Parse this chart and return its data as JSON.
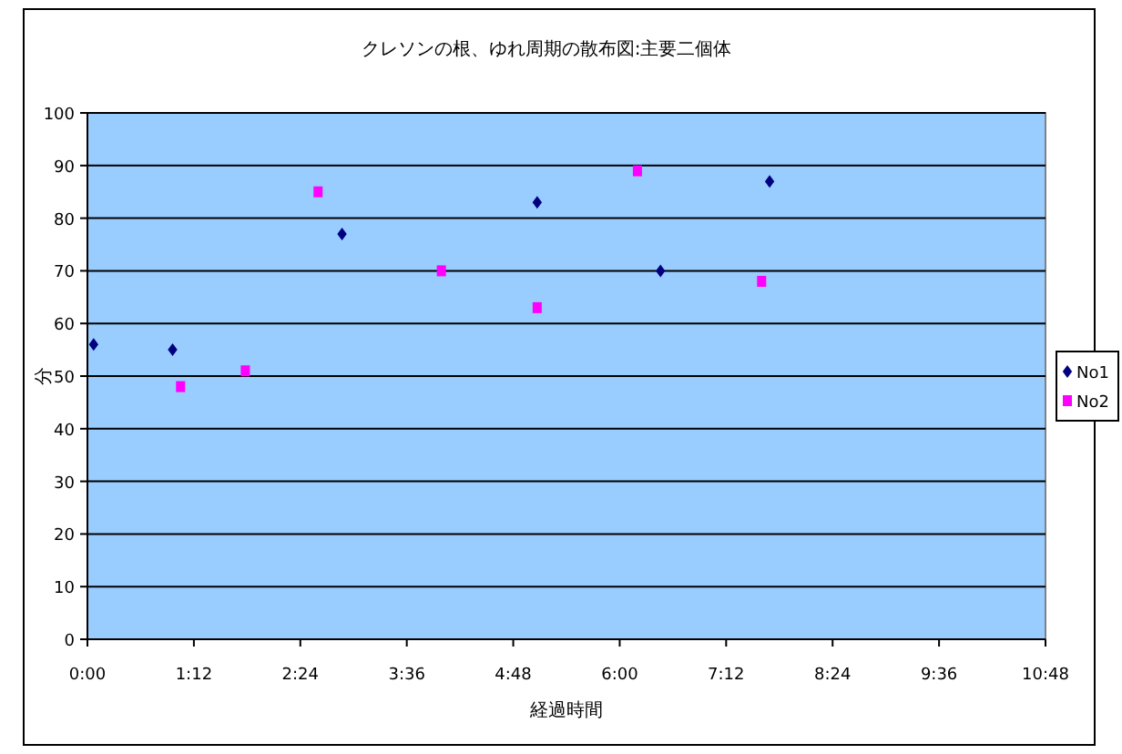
{
  "chart_data": {
    "type": "scatter",
    "title": "クレソンの根、ゆれ周期の散布図:主要二個体",
    "xlabel": "経過時間",
    "ylabel": "分",
    "series": [
      {
        "name": "No1",
        "color": "#000080",
        "marker": "diamond",
        "x": [
          0.07,
          0.96,
          2.87,
          5.07,
          6.46,
          7.69
        ],
        "values": [
          56,
          55,
          77,
          83,
          70,
          87
        ]
      },
      {
        "name": "No2",
        "color": "#ff00ff",
        "marker": "square",
        "x": [
          1.05,
          1.78,
          2.6,
          3.99,
          5.07,
          6.2,
          7.6
        ],
        "values": [
          48,
          51,
          85,
          70,
          63,
          89,
          68
        ]
      }
    ],
    "xlim": [
      0,
      10.8
    ],
    "xticks": [
      {
        "value": 0,
        "label": "0:00"
      },
      {
        "value": 1.2,
        "label": "1:12"
      },
      {
        "value": 2.4,
        "label": "2:24"
      },
      {
        "value": 3.6,
        "label": "3:36"
      },
      {
        "value": 4.8,
        "label": "4:48"
      },
      {
        "value": 6,
        "label": "6:00"
      },
      {
        "value": 7.2,
        "label": "7:12"
      },
      {
        "value": 8.4,
        "label": "8:24"
      },
      {
        "value": 9.6,
        "label": "9:36"
      },
      {
        "value": 10.8,
        "label": "10:48"
      }
    ],
    "ylim": [
      0,
      100
    ],
    "yticks": [
      0,
      10,
      20,
      30,
      40,
      50,
      60,
      70,
      80,
      90,
      100
    ],
    "grid": "y",
    "legend": "right"
  }
}
